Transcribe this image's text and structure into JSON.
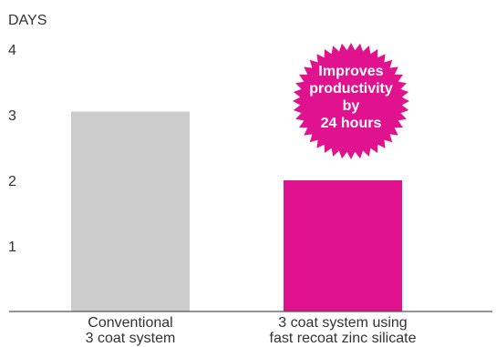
{
  "chart_data": {
    "type": "bar",
    "unit_label": "DAYS",
    "yticks": [
      "1",
      "2",
      "3",
      "4"
    ],
    "ylim": [
      0,
      4
    ],
    "grid": false,
    "categories": [
      [
        "Conventional",
        "3 coat system"
      ],
      [
        "3 coat system using",
        "fast recoat zinc silicate"
      ]
    ],
    "values": [
      3.05,
      2.0
    ],
    "colors": [
      "#cccccc",
      "#e0128e"
    ],
    "annotation": [
      "Improves",
      "productivity",
      "by",
      "24 hours"
    ],
    "annotation_color": "#e0128e"
  }
}
